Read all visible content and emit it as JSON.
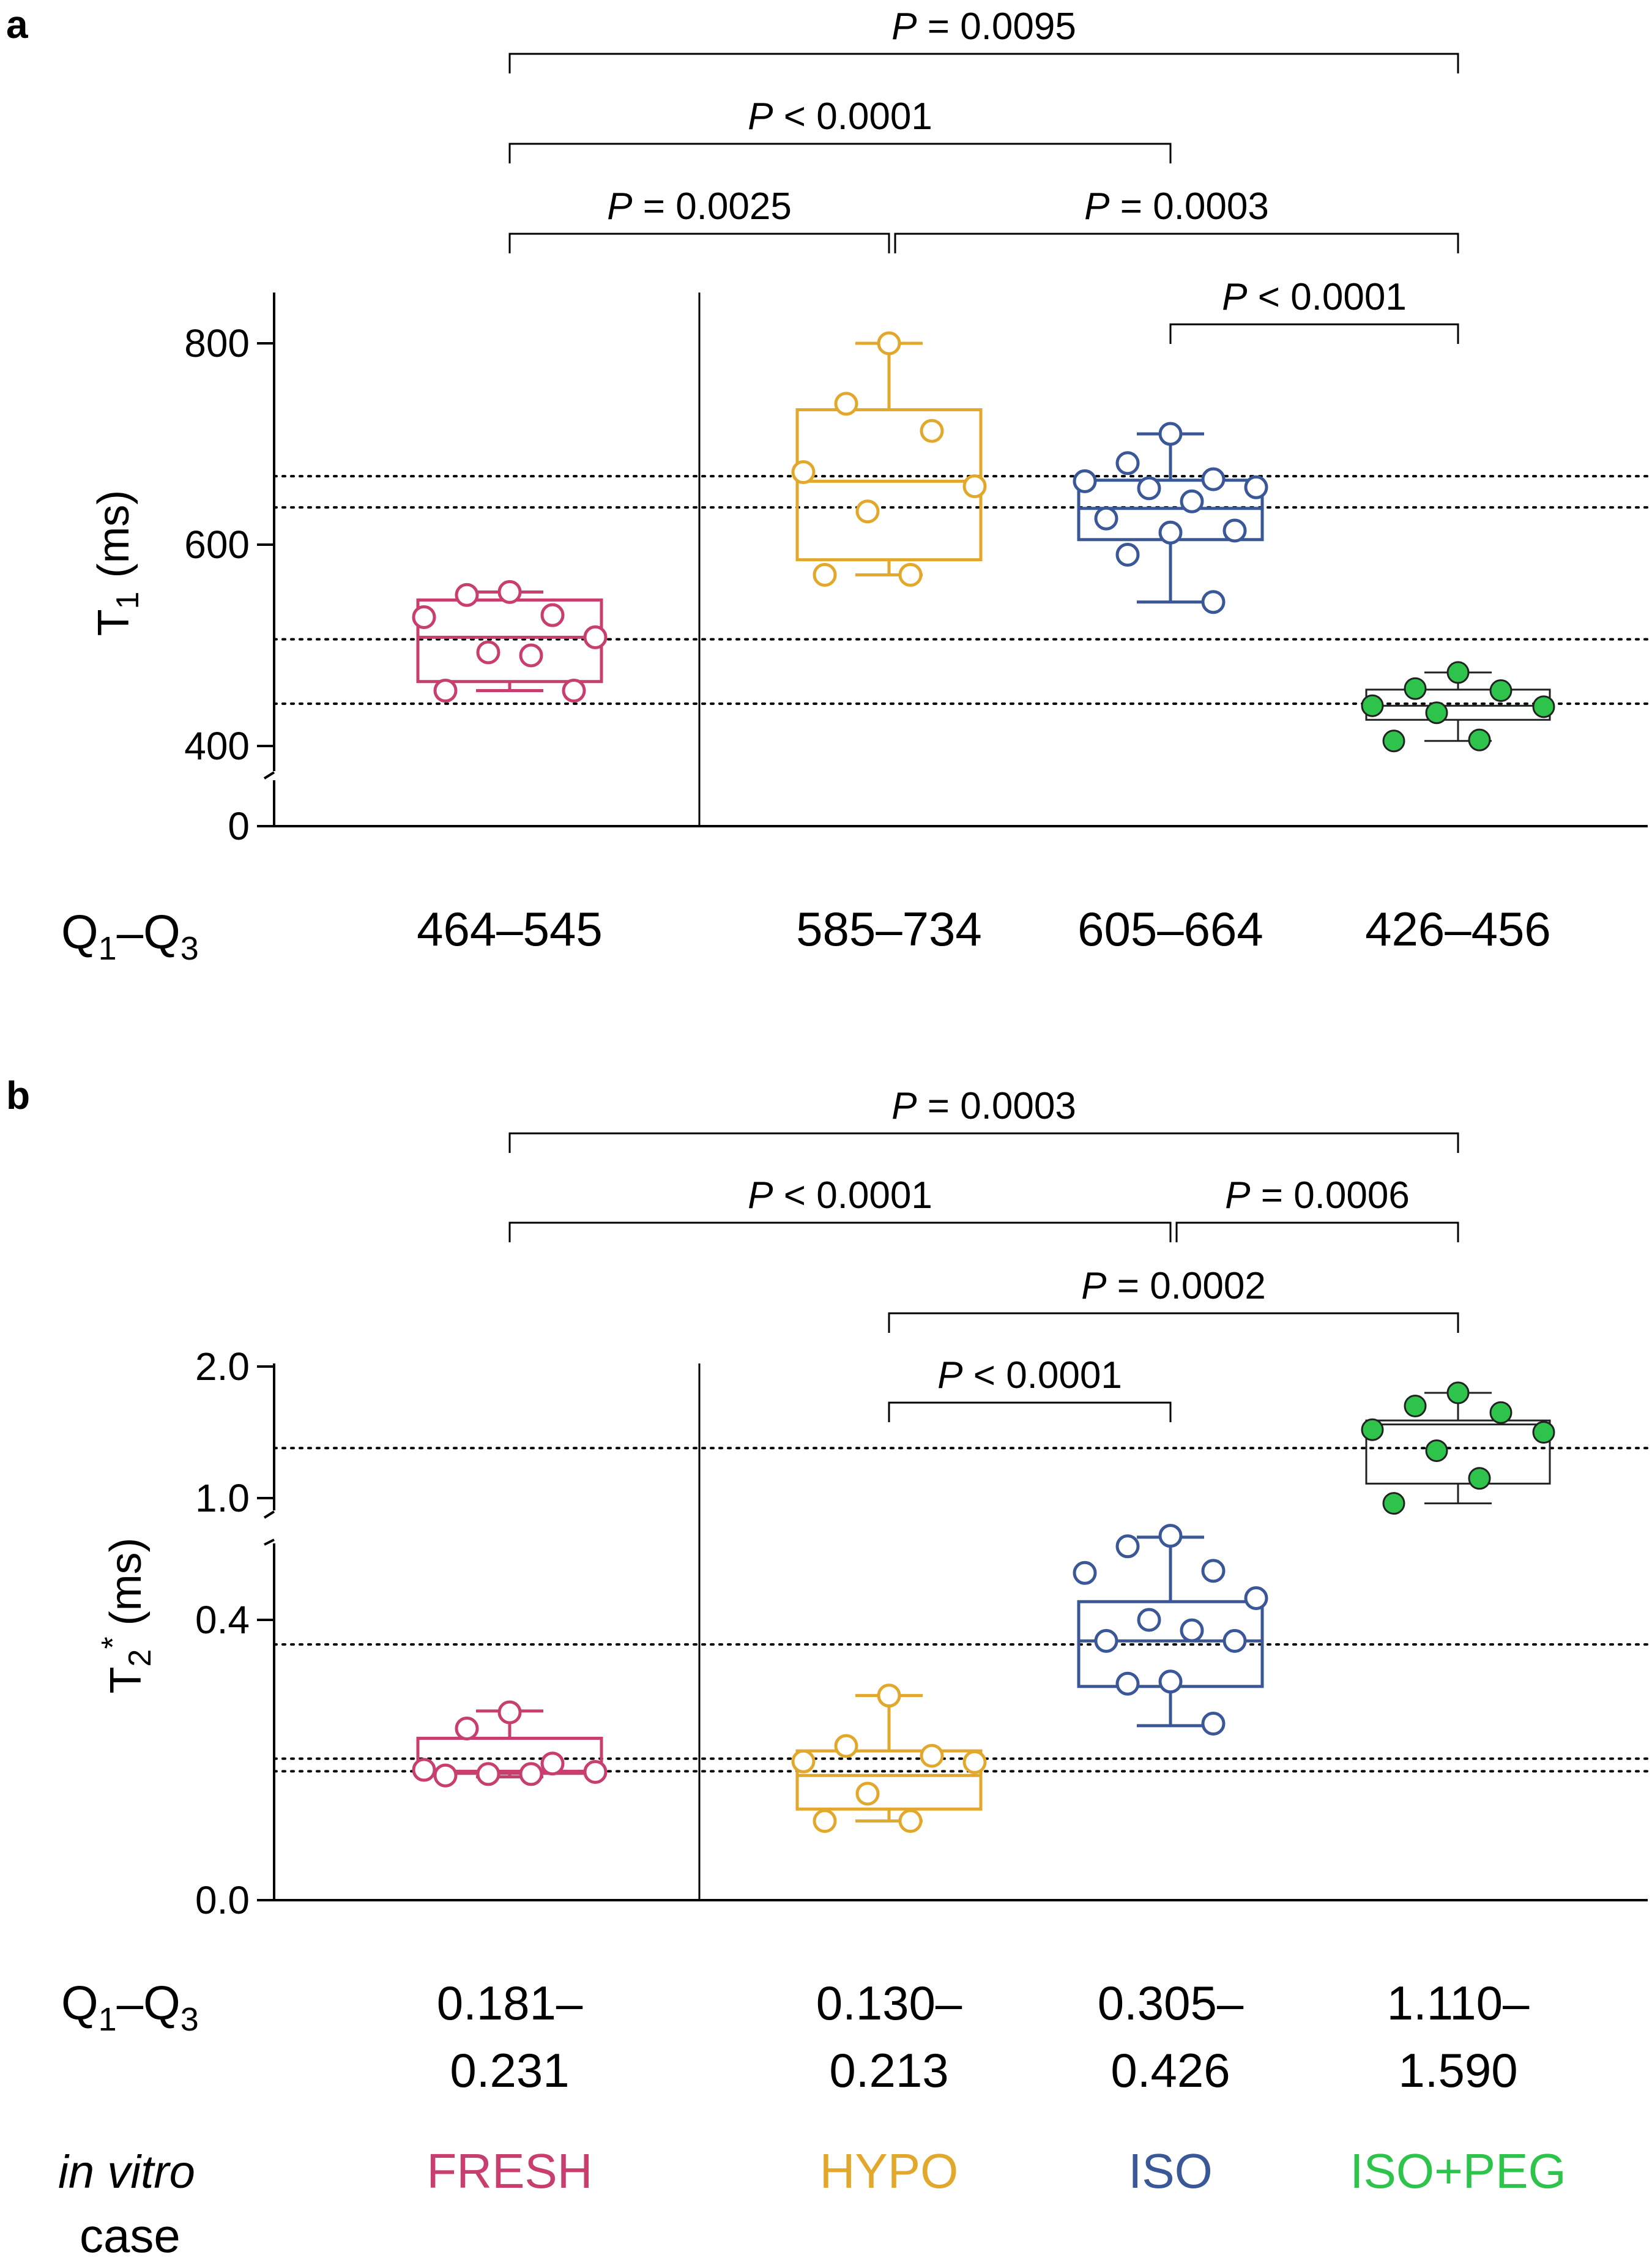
{
  "chart_data": [
    {
      "panel": "a",
      "type": "box",
      "ylabel": "T1 (ms)",
      "ylabel_main": "T",
      "ylabel_sub": "1",
      "ylabel_units": "(ms)",
      "y_axis_break": true,
      "ylim": [
        0,
        850
      ],
      "yticks": [
        {
          "value": 0,
          "label": "0"
        },
        {
          "value": 400,
          "label": "400"
        },
        {
          "value": 600,
          "label": "600"
        },
        {
          "value": 800,
          "label": "800"
        }
      ],
      "groups": [
        {
          "name": "FRESH",
          "color": "#C83E6E",
          "filled": false,
          "whisker_min": 455,
          "q1": 464,
          "median": 508,
          "q3": 545,
          "whisker_max": 553,
          "points": [
            553,
            550,
            530,
            528,
            508,
            493,
            490,
            455,
            455
          ]
        },
        {
          "name": "HYPO",
          "color": "#E2A82B",
          "filled": false,
          "whisker_min": 570,
          "q1": 585,
          "median": 663,
          "q3": 734,
          "whisker_max": 800,
          "points": [
            800,
            740,
            713,
            672,
            658,
            633,
            570,
            570
          ]
        },
        {
          "name": "ISO",
          "color": "#3A5797",
          "filled": false,
          "whisker_min": 543,
          "q1": 605,
          "median": 636,
          "q3": 664,
          "whisker_max": 710,
          "points": [
            710,
            681,
            665,
            663,
            657,
            656,
            643,
            626,
            614,
            612,
            590,
            543
          ]
        },
        {
          "name": "ISO+PEG",
          "color": "#2EC34A",
          "filled": true,
          "whisker_min": 405,
          "q1": 426,
          "median": 440,
          "q3": 456,
          "whisker_max": 473,
          "points": [
            473,
            457,
            455,
            440,
            439,
            433,
            406,
            405
          ]
        }
      ],
      "reference_lines": [
        668,
        637,
        506,
        442
      ],
      "comparisons": [
        {
          "from": "FRESH",
          "to": "ISO+PEG",
          "label_prefix": "P",
          "label_rest": " = 0.0095"
        },
        {
          "from": "FRESH",
          "to": "ISO",
          "label_prefix": "P",
          "label_rest": " < 0.0001"
        },
        {
          "from": "FRESH",
          "to": "HYPO",
          "label_prefix": "P",
          "label_rest": " = 0.0025"
        },
        {
          "from": "HYPO",
          "to": "ISO+PEG",
          "label_prefix": "P",
          "label_rest": " = 0.0003"
        },
        {
          "from": "ISO",
          "to": "ISO+PEG",
          "label_prefix": "P",
          "label_rest": " < 0.0001"
        }
      ],
      "q_label_main": "Q",
      "q_label_sub1": "1",
      "q_label_dash": "–Q",
      "q_label_sub2": "3",
      "q_ranges": [
        "464–545",
        "585–734",
        "605–664",
        "426–456"
      ]
    },
    {
      "panel": "b",
      "type": "box",
      "ylabel": "T2* (ms)",
      "ylabel_main": "T",
      "ylabel_sub": "2",
      "ylabel_sup": "*",
      "ylabel_units": "(ms)",
      "y_axis_break": true,
      "y_segments": [
        {
          "range": [
            0.0,
            0.5
          ]
        },
        {
          "range": [
            0.9,
            2.0
          ]
        }
      ],
      "yticks": [
        {
          "value": 0.0,
          "label": "0.0"
        },
        {
          "value": 0.4,
          "label": "0.4"
        },
        {
          "value": 1.0,
          "label": "1.0"
        },
        {
          "value": 2.0,
          "label": "2.0"
        }
      ],
      "groups": [
        {
          "name": "FRESH",
          "color": "#C83E6E",
          "filled": false,
          "whisker_min": 0.176,
          "q1": 0.181,
          "median": 0.184,
          "q3": 0.231,
          "whisker_max": 0.27,
          "points": [
            0.268,
            0.245,
            0.195,
            0.186,
            0.183,
            0.18,
            0.18,
            0.178
          ]
        },
        {
          "name": "HYPO",
          "color": "#E2A82B",
          "filled": false,
          "whisker_min": 0.113,
          "q1": 0.13,
          "median": 0.178,
          "q3": 0.213,
          "whisker_max": 0.292,
          "points": [
            0.292,
            0.22,
            0.206,
            0.198,
            0.197,
            0.152,
            0.113,
            0.113
          ]
        },
        {
          "name": "ISO",
          "color": "#3A5797",
          "filled": false,
          "whisker_min": 0.249,
          "q1": 0.305,
          "median": 0.37,
          "q3": 0.426,
          "whisker_max": 0.518,
          "points": [
            0.52,
            0.505,
            0.47,
            0.467,
            0.431,
            0.4,
            0.385,
            0.37,
            0.37,
            0.312,
            0.309,
            0.252
          ]
        },
        {
          "name": "ISO+PEG",
          "color": "#2EC34A",
          "filled": true,
          "whisker_min": 0.96,
          "q1": 1.11,
          "median": 1.56,
          "q3": 1.59,
          "whisker_max": 1.8,
          "points": [
            1.8,
            1.7,
            1.65,
            1.52,
            1.5,
            1.36,
            1.15,
            0.96
          ]
        }
      ],
      "reference_lines": [
        1.38,
        0.365,
        0.202,
        0.184
      ],
      "comparisons": [
        {
          "from": "FRESH",
          "to": "ISO+PEG",
          "label_prefix": "P",
          "label_rest": " = 0.0003"
        },
        {
          "from": "FRESH",
          "to": "ISO",
          "label_prefix": "P",
          "label_rest": " < 0.0001"
        },
        {
          "from": "ISO",
          "to": "ISO+PEG",
          "label_prefix": "P",
          "label_rest": " = 0.0006"
        },
        {
          "from": "HYPO",
          "to": "ISO+PEG",
          "label_prefix": "P",
          "label_rest": " = 0.0002"
        },
        {
          "from": "HYPO",
          "to": "ISO",
          "label_prefix": "P",
          "label_rest": " < 0.0001"
        }
      ],
      "q_label_main": "Q",
      "q_label_sub1": "1",
      "q_label_dash": "–Q",
      "q_label_sub2": "3",
      "q_ranges": [
        {
          "line1": "0.181–",
          "line2": "0.231"
        },
        {
          "line1": "0.130–",
          "line2": "0.213"
        },
        {
          "line1": "0.305–",
          "line2": "0.426"
        },
        {
          "line1": "1.110–",
          "line2": "1.590"
        }
      ]
    }
  ],
  "case_row": {
    "label_line1": "in vitro",
    "label_line2": "case",
    "names": [
      "FRESH",
      "HYPO",
      "ISO",
      "ISO+PEG"
    ]
  },
  "colors": {
    "FRESH": "#C83E6E",
    "HYPO": "#E2A82B",
    "ISO": "#3A5797",
    "ISO+PEG": "#2EC34A"
  }
}
